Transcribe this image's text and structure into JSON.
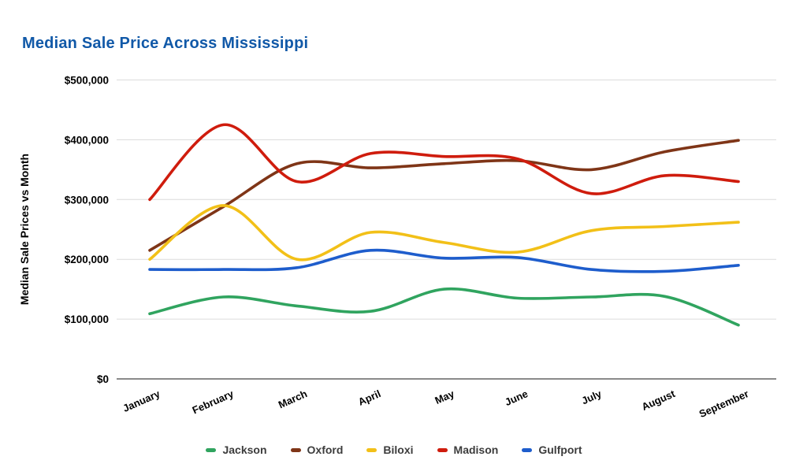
{
  "title": "Median Sale Price Across Mississippi",
  "chart_data": {
    "type": "line",
    "line_style": "smooth",
    "title": "Median Sale Price Across Mississippi",
    "xlabel": "",
    "ylabel": "Median Sale Prices vs Month",
    "categories": [
      "January",
      "February",
      "March",
      "April",
      "May",
      "June",
      "July",
      "August",
      "September"
    ],
    "ylim": [
      0,
      500000
    ],
    "grid": "horizontal",
    "legend_position": "bottom",
    "y_ticks": [
      {
        "value": 0,
        "label": "$0"
      },
      {
        "value": 100000,
        "label": "$100,000"
      },
      {
        "value": 200000,
        "label": "$200,000"
      },
      {
        "value": 300000,
        "label": "$300,000"
      },
      {
        "value": 400000,
        "label": "$400,000"
      },
      {
        "value": 500000,
        "label": "$500,000"
      }
    ],
    "series": [
      {
        "name": "Jackson",
        "color": "#30a45f",
        "values": [
          109000,
          137000,
          122000,
          113000,
          150000,
          135000,
          137000,
          138000,
          90000
        ]
      },
      {
        "name": "Oxford",
        "color": "#7f3517",
        "values": [
          215000,
          288000,
          360000,
          353000,
          360000,
          365000,
          350000,
          380000,
          399000
        ]
      },
      {
        "name": "Biloxi",
        "color": "#f2c018",
        "values": [
          200000,
          290000,
          200000,
          245000,
          228000,
          212000,
          248000,
          255000,
          262000
        ]
      },
      {
        "name": "Madison",
        "color": "#cf1c0d",
        "values": [
          300000,
          425000,
          330000,
          377000,
          372000,
          368000,
          310000,
          340000,
          330000
        ]
      },
      {
        "name": "Gulfport",
        "color": "#1e5dcc",
        "values": [
          183000,
          183000,
          186000,
          215000,
          202000,
          203000,
          183000,
          180000,
          190000
        ]
      }
    ],
    "colors": {
      "title_blue": "#1159a8",
      "gridline": "#dcdcdc",
      "axis_baseline": "#8a8a8a",
      "axis_text": "#000000",
      "legend_text": "#3c3c3c"
    }
  }
}
